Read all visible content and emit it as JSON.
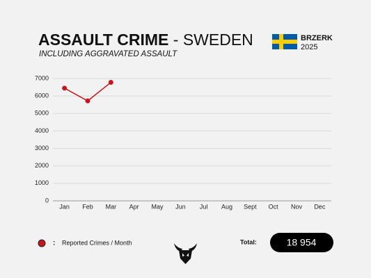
{
  "chart_data": {
    "type": "line",
    "title": "ASSAULT CRIME",
    "title_suffix": "- SWEDEN",
    "subtitle": "INCLUDING AGGRAVATED ASSAULT",
    "brand": "BRZERK",
    "year": "2025",
    "categories": [
      "Jan",
      "Feb",
      "Mar",
      "Apr",
      "May",
      "Jun",
      "Jul",
      "Aug",
      "Sept",
      "Oct",
      "Nov",
      "Dec"
    ],
    "series": [
      {
        "name": "Reported Crimes / Month",
        "color": "#c4161c",
        "values": [
          6450,
          5720,
          6780,
          null,
          null,
          null,
          null,
          null,
          null,
          null,
          null,
          null
        ]
      }
    ],
    "ylim": [
      0,
      7000
    ],
    "yticks": [
      0,
      1000,
      2000,
      3000,
      4000,
      5000,
      6000,
      7000
    ],
    "grid": true,
    "legend_separator": ":",
    "total_label": "Total:",
    "total_value": "18 954"
  }
}
